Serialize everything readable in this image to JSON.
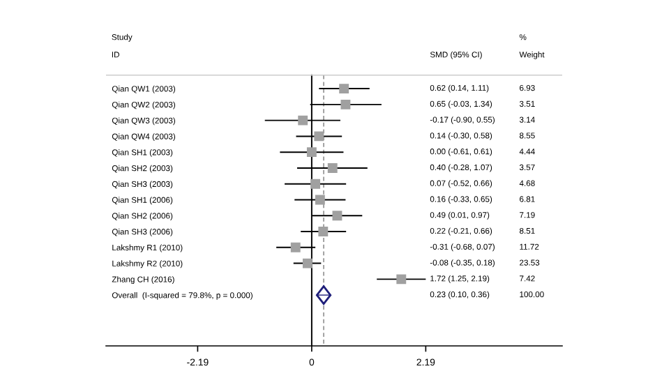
{
  "chart_data": {
    "type": "scatter",
    "orientation": "horizontal",
    "categories": [
      "Qian QW1 (2003)",
      "Qian QW2 (2003)",
      "Qian QW3 (2003)",
      "Qian QW4 (2003)",
      "Qian SH1 (2003)",
      "Qian SH2 (2003)",
      "Qian SH3 (2003)",
      "Qian SH1 (2006)",
      "Qian SH2 (2006)",
      "Qian SH3 (2006)",
      "Lakshmy R1 (2010)",
      "Lakshmy R2 (2010)",
      "Zhang CH (2016)",
      "Overall  (I-squared = 79.8%, p = 0.000)"
    ],
    "series": [
      {
        "marker": "square",
        "color": "#a0a0a0",
        "values": [
          0.62,
          0.65,
          -0.17,
          0.14,
          0.0,
          0.4,
          0.07,
          0.16,
          0.49,
          0.22,
          -0.31,
          -0.08,
          1.72,
          null
        ],
        "errors": [
          [
            0.14,
            1.11
          ],
          [
            -0.03,
            1.34
          ],
          [
            -0.9,
            0.55
          ],
          [
            -0.3,
            0.58
          ],
          [
            -0.61,
            0.61
          ],
          [
            -0.28,
            1.07
          ],
          [
            -0.52,
            0.66
          ],
          [
            -0.33,
            0.65
          ],
          [
            0.01,
            0.97
          ],
          [
            -0.21,
            0.66
          ],
          [
            -0.68,
            0.07
          ],
          [
            -0.35,
            0.18
          ],
          [
            1.25,
            2.19
          ],
          null
        ]
      },
      {
        "marker": "diamond",
        "color": "#1f1f7a",
        "values": [
          null,
          null,
          null,
          null,
          null,
          null,
          null,
          null,
          null,
          null,
          null,
          null,
          null,
          0.23
        ],
        "errors": [
          null,
          null,
          null,
          null,
          null,
          null,
          null,
          null,
          null,
          null,
          null,
          null,
          null,
          [
            0.1,
            0.36
          ]
        ]
      }
    ],
    "annotations": [
      "Study",
      "ID",
      "SMD (95% CI)",
      "%",
      "Weight",
      "0.62 (0.14, 1.11)",
      "0.65 (-0.03, 1.34)",
      "-0.17 (-0.90, 0.55)",
      "0.14 (-0.30, 0.58)",
      "0.00 (-0.61, 0.61)",
      "0.40 (-0.28, 1.07)",
      "0.07 (-0.52, 0.66)",
      "0.16 (-0.33, 0.65)",
      "0.49 (0.01, 0.97)",
      "0.22 (-0.21, 0.66)",
      "-0.31 (-0.68, 0.07)",
      "-0.08 (-0.35, 0.18)",
      "1.72 (1.25, 2.19)",
      "0.23 (0.10, 0.36)",
      "6.93",
      "3.51",
      "3.14",
      "8.55",
      "4.44",
      "3.57",
      "4.68",
      "6.81",
      "7.19",
      "8.51",
      "11.72",
      "23.53",
      "7.42",
      "100.00"
    ],
    "xlim": [
      -3.95,
      4.81
    ],
    "xticks": [
      -2.19,
      0,
      2.19
    ],
    "ref_lines": [
      {
        "axis": "x",
        "value": 0,
        "color": "#000000",
        "line_style": "solid"
      },
      {
        "axis": "x",
        "value": 0.23,
        "color": "#a0a0a0",
        "line_style": "dashed"
      }
    ]
  }
}
